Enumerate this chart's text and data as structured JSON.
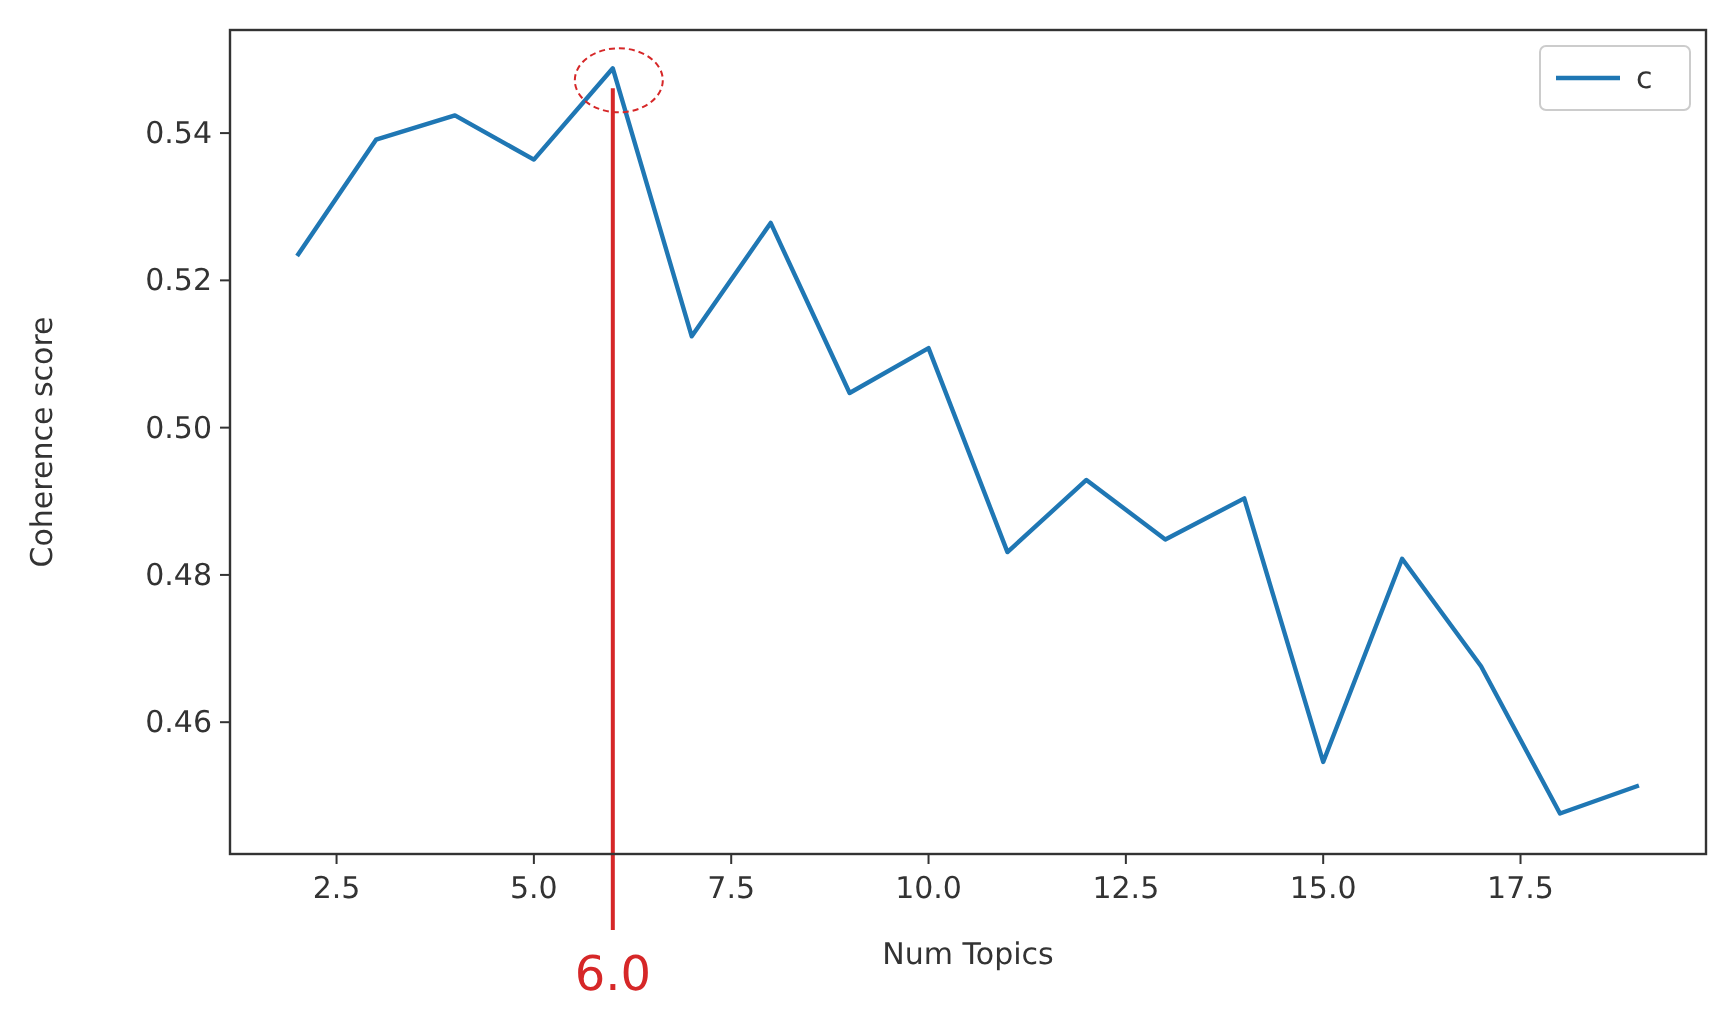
{
  "chart_data": {
    "type": "line",
    "xlabel": "Num Topics",
    "ylabel": "Coherence score",
    "x": [
      2,
      3,
      4,
      5,
      6,
      7,
      8,
      9,
      10,
      11,
      12,
      13,
      14,
      15,
      16,
      17,
      18,
      19
    ],
    "series": [
      {
        "name": "c",
        "color": "#1f77b4",
        "values": [
          0.5233,
          0.5391,
          0.5424,
          0.5364,
          0.5488,
          0.5124,
          0.5278,
          0.5047,
          0.5108,
          0.4831,
          0.4929,
          0.4848,
          0.4904,
          0.4546,
          0.4822,
          0.4676,
          0.4476,
          0.4514
        ]
      }
    ],
    "xlim": [
      1.15,
      19.85
    ],
    "xticks": [
      {
        "value": 2.5,
        "label": "2.5"
      },
      {
        "value": 5,
        "label": "5.0"
      },
      {
        "value": 7.5,
        "label": "7.5"
      },
      {
        "value": 10,
        "label": "10.0"
      },
      {
        "value": 12.5,
        "label": "12.5"
      },
      {
        "value": 15,
        "label": "15.0"
      },
      {
        "value": 17.5,
        "label": "17.5"
      }
    ],
    "ylim": [
      0.4421,
      0.554
    ],
    "yticks": [
      {
        "value": 0.46,
        "label": "0.46"
      },
      {
        "value": 0.48,
        "label": "0.48"
      },
      {
        "value": 0.5,
        "label": "0.50"
      },
      {
        "value": 0.52,
        "label": "0.52"
      },
      {
        "value": 0.54,
        "label": "0.54"
      }
    ],
    "ref_lines": [
      {
        "axis": "x",
        "value": 6,
        "label": "6.0",
        "color": "#d62728"
      }
    ],
    "grid": false,
    "legend": "top right",
    "marker": "none",
    "line_style": "solid"
  }
}
